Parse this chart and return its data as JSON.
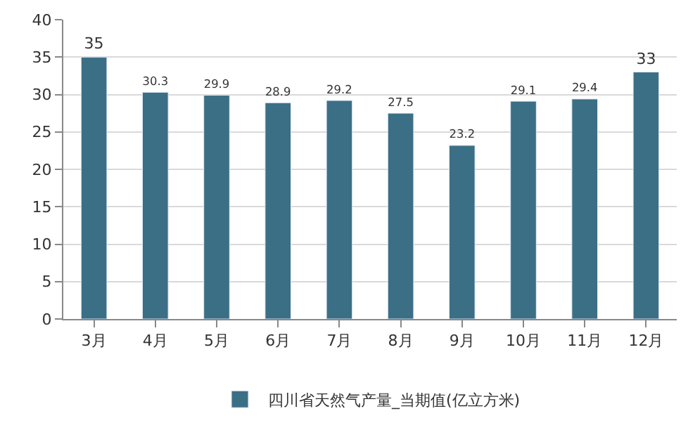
{
  "chart_data": {
    "type": "bar",
    "categories": [
      "3月",
      "4月",
      "5月",
      "6月",
      "7月",
      "8月",
      "9月",
      "10月",
      "11月",
      "12月"
    ],
    "series": [
      {
        "name": "四川省天然气产量_当期值(亿立方米)",
        "color": "#3b6f86",
        "values": [
          35,
          30.3,
          29.9,
          28.9,
          29.2,
          27.5,
          23.2,
          29.1,
          29.4,
          33
        ]
      }
    ],
    "ylim": [
      0,
      40
    ],
    "yticks": [
      0,
      5,
      10,
      15,
      20,
      25,
      30,
      35,
      40
    ],
    "grid": "y",
    "legend": "bottom",
    "data_labels": true
  }
}
